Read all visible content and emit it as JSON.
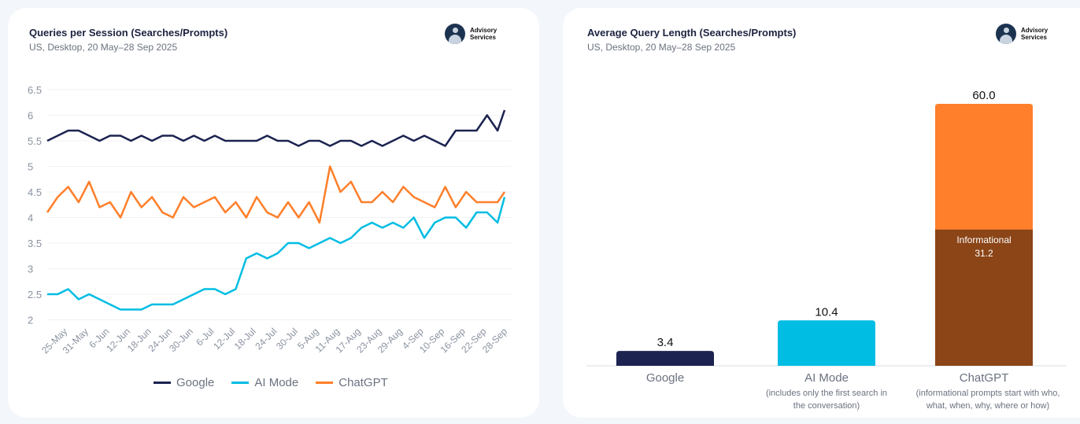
{
  "left": {
    "title": "Queries per Session (Searches/Prompts)",
    "subtitle": "US, Desktop, 20 May–28 Sep 2025",
    "logo": [
      "Advisory",
      "Services"
    ]
  },
  "right": {
    "title": "Average Query Length (Searches/Prompts)",
    "subtitle": "US, Desktop, 20 May–28 Sep 2025",
    "logo": [
      "Advisory",
      "Services"
    ],
    "notes": {
      "ai_mode": "(includes only the first search in the conversation)",
      "chatgpt": "(informational prompts start with who, what, when, why, where or how)"
    }
  },
  "colors": {
    "google": "#1c2350",
    "ai_mode": "#00bde3",
    "chatgpt": "#ff7f2a",
    "informational": "#8b4517"
  },
  "chart_data": [
    {
      "type": "line",
      "title": "Queries per Session (Searches/Prompts)",
      "ylim": [
        2,
        6.5
      ],
      "yticks": [
        "6.5",
        "6",
        "5.5",
        "5",
        "4.5",
        "4",
        "3.5",
        "3",
        "2.5",
        "2"
      ],
      "xticks": [
        "25-May",
        "31-May",
        "6-Jun",
        "12-Jun",
        "18-Jun",
        "24-Jun",
        "30-Jun",
        "6-Jul",
        "12-Jul",
        "18-Jul",
        "24-Jul",
        "30-Jul",
        "5-Aug",
        "11-Aug",
        "17-Aug",
        "23-Aug",
        "29-Aug",
        "4-Sep",
        "10-Sep",
        "16-Sep",
        "22-Sep",
        "28-Sep"
      ],
      "grid": true,
      "legend": "bottom",
      "x": [
        "20-May",
        "23-May",
        "26-May",
        "29-May",
        "1-Jun",
        "4-Jun",
        "7-Jun",
        "10-Jun",
        "13-Jun",
        "16-Jun",
        "19-Jun",
        "22-Jun",
        "25-Jun",
        "28-Jun",
        "1-Jul",
        "4-Jul",
        "7-Jul",
        "10-Jul",
        "13-Jul",
        "16-Jul",
        "19-Jul",
        "22-Jul",
        "25-Jul",
        "28-Jul",
        "31-Jul",
        "3-Aug",
        "6-Aug",
        "9-Aug",
        "12-Aug",
        "15-Aug",
        "18-Aug",
        "21-Aug",
        "24-Aug",
        "27-Aug",
        "30-Aug",
        "2-Sep",
        "5-Sep",
        "8-Sep",
        "11-Sep",
        "14-Sep",
        "17-Sep",
        "20-Sep",
        "23-Sep",
        "26-Sep",
        "28-Sep"
      ],
      "series": [
        {
          "name": "Google",
          "values": [
            5.5,
            5.6,
            5.7,
            5.7,
            5.6,
            5.5,
            5.6,
            5.6,
            5.5,
            5.6,
            5.5,
            5.6,
            5.6,
            5.5,
            5.6,
            5.5,
            5.6,
            5.5,
            5.5,
            5.5,
            5.5,
            5.6,
            5.5,
            5.5,
            5.4,
            5.5,
            5.5,
            5.4,
            5.5,
            5.5,
            5.4,
            5.5,
            5.4,
            5.5,
            5.6,
            5.5,
            5.6,
            5.5,
            5.4,
            5.7,
            5.7,
            5.7,
            6.0,
            5.7,
            6.1
          ]
        },
        {
          "name": "AI Mode",
          "values": [
            2.5,
            2.5,
            2.6,
            2.4,
            2.5,
            2.4,
            2.3,
            2.2,
            2.2,
            2.2,
            2.3,
            2.3,
            2.3,
            2.4,
            2.5,
            2.6,
            2.6,
            2.5,
            2.6,
            3.2,
            3.3,
            3.2,
            3.3,
            3.5,
            3.5,
            3.4,
            3.5,
            3.6,
            3.5,
            3.6,
            3.8,
            3.9,
            3.8,
            3.9,
            3.8,
            4.0,
            3.6,
            3.9,
            4.0,
            4.0,
            3.8,
            4.1,
            4.1,
            3.9,
            4.4
          ]
        },
        {
          "name": "ChatGPT",
          "values": [
            4.1,
            4.4,
            4.6,
            4.3,
            4.7,
            4.2,
            4.3,
            4.0,
            4.5,
            4.2,
            4.4,
            4.1,
            4.0,
            4.4,
            4.2,
            4.3,
            4.4,
            4.1,
            4.3,
            4.0,
            4.4,
            4.1,
            4.0,
            4.3,
            4.0,
            4.3,
            3.9,
            5.0,
            4.5,
            4.7,
            4.3,
            4.3,
            4.5,
            4.3,
            4.6,
            4.4,
            4.3,
            4.2,
            4.6,
            4.2,
            4.5,
            4.3,
            4.3,
            4.3,
            4.5
          ]
        }
      ]
    },
    {
      "type": "bar",
      "title": "Average Query Length (Searches/Prompts)",
      "categories": [
        "Google",
        "AI Mode",
        "ChatGPT"
      ],
      "values": [
        3.4,
        10.4,
        60.0
      ],
      "labels": [
        "3.4",
        "10.4",
        "60.0"
      ],
      "stacked_segment": {
        "category": "ChatGPT",
        "name": "Informational",
        "value": 31.2,
        "label": "31.2"
      }
    }
  ]
}
